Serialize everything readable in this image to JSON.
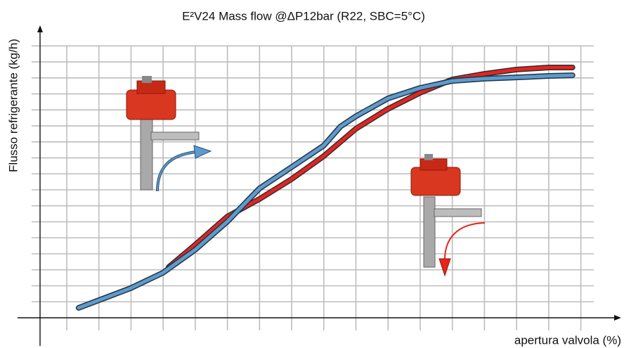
{
  "chart_data": {
    "type": "line",
    "title": "E²V24 Mass flow @ΔP12bar (R22, SBC=5°C)",
    "x_label": "apertura valvola (%)",
    "y_label": "Flusso refrigerante (kg/h)",
    "xlim": [
      0,
      18.3
    ],
    "ylim": [
      0,
      18.3
    ],
    "xticks": [
      1,
      2,
      3,
      4,
      5,
      6,
      7,
      8,
      9,
      10,
      11,
      12,
      13,
      14,
      15,
      16,
      17
    ],
    "yticks": [
      1,
      2,
      3,
      4,
      5,
      6,
      7,
      8,
      9,
      10,
      11,
      12,
      13,
      14,
      15,
      16,
      17
    ],
    "grid": true,
    "series": [
      {
        "color": "#e8231b",
        "x": [
          4.17,
          5.0,
          6.0,
          7.0,
          7.99,
          9.0,
          10.0,
          10.99,
          12.0,
          13.0,
          14.0,
          14.99,
          16.0,
          16.74
        ],
        "values": [
          3.16,
          4.57,
          6.33,
          7.43,
          8.66,
          10.11,
          11.82,
          13.05,
          14.07,
          14.9,
          15.25,
          15.52,
          15.65,
          15.65
        ]
      },
      {
        "color": "#5b9bcf",
        "x": [
          1.37,
          2.99,
          3.99,
          5.0,
          6.0,
          7.0,
          7.99,
          9.0,
          9.52,
          10.0,
          10.99,
          12.0,
          13.0,
          14.0,
          14.99,
          16.0,
          16.74
        ],
        "values": [
          0.62,
          1.85,
          2.81,
          4.26,
          6.02,
          8.09,
          9.41,
          10.77,
          11.96,
          12.6,
          13.71,
          14.37,
          14.81,
          14.95,
          15.03,
          15.12,
          15.16
        ]
      }
    ]
  }
}
